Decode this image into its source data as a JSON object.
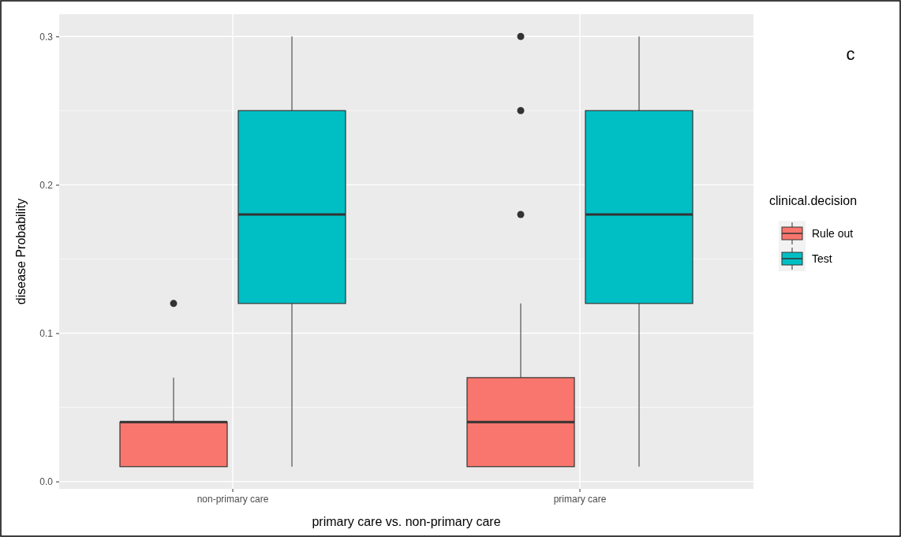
{
  "chart_data": {
    "type": "box",
    "xlabel": "primary care vs. non-primary care",
    "ylabel": "disease Probability",
    "legend_title": "clinical.decision",
    "categories": [
      "non-primary care",
      "primary care"
    ],
    "ylim": [
      -0.005,
      0.315
    ],
    "yticks": [
      {
        "value": 0,
        "label": "0.0"
      },
      0.1,
      0.2,
      0.3
    ],
    "grid": true,
    "legend": "right",
    "series": [
      {
        "name": "Rule out",
        "color": "#f8766d",
        "boxes": [
          {
            "low": 0.01,
            "q1": 0.01,
            "median": 0.04,
            "q3": 0.04,
            "high": 0.07,
            "outliers": [
              0.12
            ]
          },
          {
            "low": 0.01,
            "q1": 0.01,
            "median": 0.04,
            "q3": 0.07,
            "high": 0.12,
            "outliers": [
              0.18,
              0.25,
              0.3
            ]
          }
        ]
      },
      {
        "name": "Test",
        "color": "#00bfc4",
        "boxes": [
          {
            "low": 0.01,
            "q1": 0.12,
            "median": 0.18,
            "q3": 0.25,
            "high": 0.3
          },
          {
            "low": 0.01,
            "q1": 0.12,
            "median": 0.18,
            "q3": 0.25,
            "high": 0.3
          }
        ]
      }
    ],
    "annotations": [
      "c"
    ]
  }
}
